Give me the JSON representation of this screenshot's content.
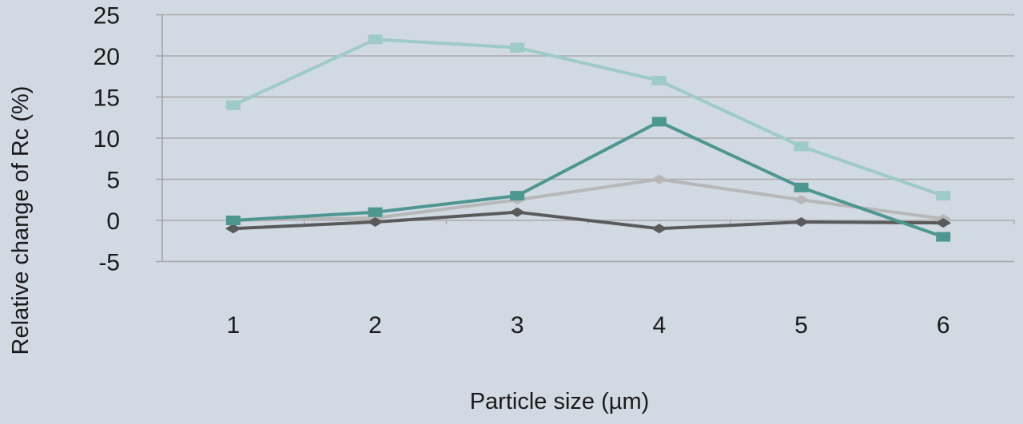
{
  "chart_data": {
    "type": "line",
    "title": "",
    "xlabel": "Particle size (µm)",
    "ylabel": "Relative change of Rc (%)",
    "categories": [
      "1",
      "2",
      "3",
      "4",
      "5",
      "6"
    ],
    "ylim": [
      -5,
      25
    ],
    "yticks": [
      25,
      20,
      15,
      10,
      5,
      0,
      -5
    ],
    "grid": true,
    "legend": "none",
    "series": [
      {
        "name": "Series 1 (light teal, square)",
        "color": "#9ecbc7",
        "marker": "square",
        "values": [
          14,
          22,
          21,
          17,
          9,
          3
        ]
      },
      {
        "name": "Series 2 (dark teal, square)",
        "color": "#4e9690",
        "marker": "square",
        "values": [
          0,
          1,
          3,
          12,
          4,
          -2
        ]
      },
      {
        "name": "Series 3 (light grey, diamond)",
        "color": "#b7b7b7",
        "marker": "diamond",
        "values": [
          0,
          0.3,
          2.5,
          5,
          2.5,
          0.2
        ]
      },
      {
        "name": "Series 4 (dark grey, diamond)",
        "color": "#5a5a5a",
        "marker": "diamond",
        "values": [
          -1,
          -0.2,
          1,
          -1,
          -0.2,
          -0.3
        ]
      }
    ]
  },
  "colors": {
    "background": "#d1d9e3",
    "gridline": "#a9a9a9",
    "axis": "#a0a0a0",
    "text": "#1a1a1a"
  }
}
